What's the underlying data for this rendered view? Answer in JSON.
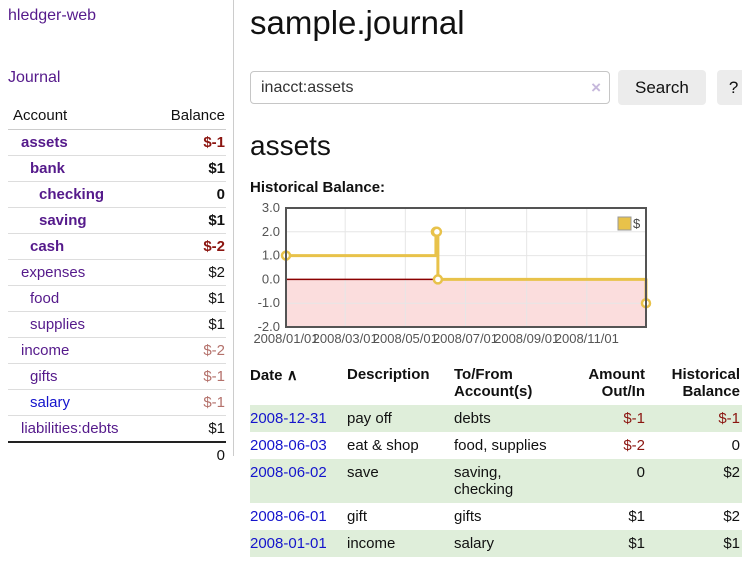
{
  "app": {
    "title": "hledger-web"
  },
  "sidebar": {
    "journal_label": "Journal",
    "table": {
      "headers": {
        "account": "Account",
        "balance": "Balance"
      },
      "rows": [
        {
          "account": "assets",
          "balance": "$-1"
        },
        {
          "account": "bank",
          "balance": "$1"
        },
        {
          "account": "checking",
          "balance": "0"
        },
        {
          "account": "saving",
          "balance": "$1"
        },
        {
          "account": "cash",
          "balance": "$-2"
        },
        {
          "account": "expenses",
          "balance": "$2"
        },
        {
          "account": "food",
          "balance": "$1"
        },
        {
          "account": "supplies",
          "balance": "$1"
        },
        {
          "account": "income",
          "balance": "$-2"
        },
        {
          "account": "gifts",
          "balance": "$-1"
        },
        {
          "account": "salary",
          "balance": "$-1"
        },
        {
          "account": "liabilities:debts",
          "balance": "$1"
        }
      ],
      "total": "0"
    }
  },
  "header": {
    "title": "sample.journal"
  },
  "search": {
    "value": "inacct:assets",
    "clear_icon": "×",
    "button_label": "Search",
    "help_label": "?"
  },
  "account_page": {
    "title": "assets"
  },
  "chart_data": {
    "type": "line",
    "title": "Historical Balance:",
    "step": true,
    "grid": true,
    "legend_position": "top-right",
    "xlim": [
      "2008-01-01",
      "2008-12-31"
    ],
    "ylim": [
      -2,
      3
    ],
    "x_ticks": [
      "2008/01/01",
      "2008/03/01",
      "2008/05/01",
      "2008/07/01",
      "2008/09/01",
      "2008/11/01"
    ],
    "y_ticks": [
      3.0,
      2.0,
      1.0,
      0.0,
      -1.0,
      -2.0
    ],
    "series": [
      {
        "name": "$",
        "color": "#e8c24a",
        "points": [
          [
            "2008-01-01",
            1
          ],
          [
            "2008-06-01",
            2
          ],
          [
            "2008-06-02",
            2
          ],
          [
            "2008-06-03",
            0
          ],
          [
            "2008-12-31",
            -1
          ]
        ]
      }
    ],
    "negative_region_color": "#fbdddd",
    "zero_line_color": "#8b0000",
    "border_color": "#545454",
    "gridline_color": "#e6e6e6",
    "tick_label_color": "#545454"
  },
  "register": {
    "headers": {
      "date": "Date",
      "sort_icon": "∧",
      "description": "Description",
      "accounts_line1": "To/From",
      "accounts_line2": "Account(s)",
      "amount_line1": "Amount",
      "amount_line2": "Out/In",
      "balance_line1": "Historical",
      "balance_line2": "Balance"
    },
    "rows": [
      {
        "date": "2008-12-31",
        "description": "pay off",
        "accounts": "debts",
        "amount": "$-1",
        "balance": "$-1"
      },
      {
        "date": "2008-06-03",
        "description": "eat & shop",
        "accounts": "food, supplies",
        "amount": "$-2",
        "balance": "0"
      },
      {
        "date": "2008-06-02",
        "description": "save",
        "accounts": "saving, checking",
        "amount": "0",
        "balance": "$2"
      },
      {
        "date": "2008-06-01",
        "description": "gift",
        "accounts": "gifts",
        "amount": "$1",
        "balance": "$2"
      },
      {
        "date": "2008-01-01",
        "description": "income",
        "accounts": "salary",
        "amount": "$1",
        "balance": "$1"
      }
    ]
  },
  "colors": {
    "link_purple": "#551a8b",
    "link_blue": "#1414cc",
    "negative_strong": "#8b1510",
    "negative_soft": "#b4716b",
    "row_green": "#dfeeda",
    "series_gold": "#e8c24a"
  }
}
